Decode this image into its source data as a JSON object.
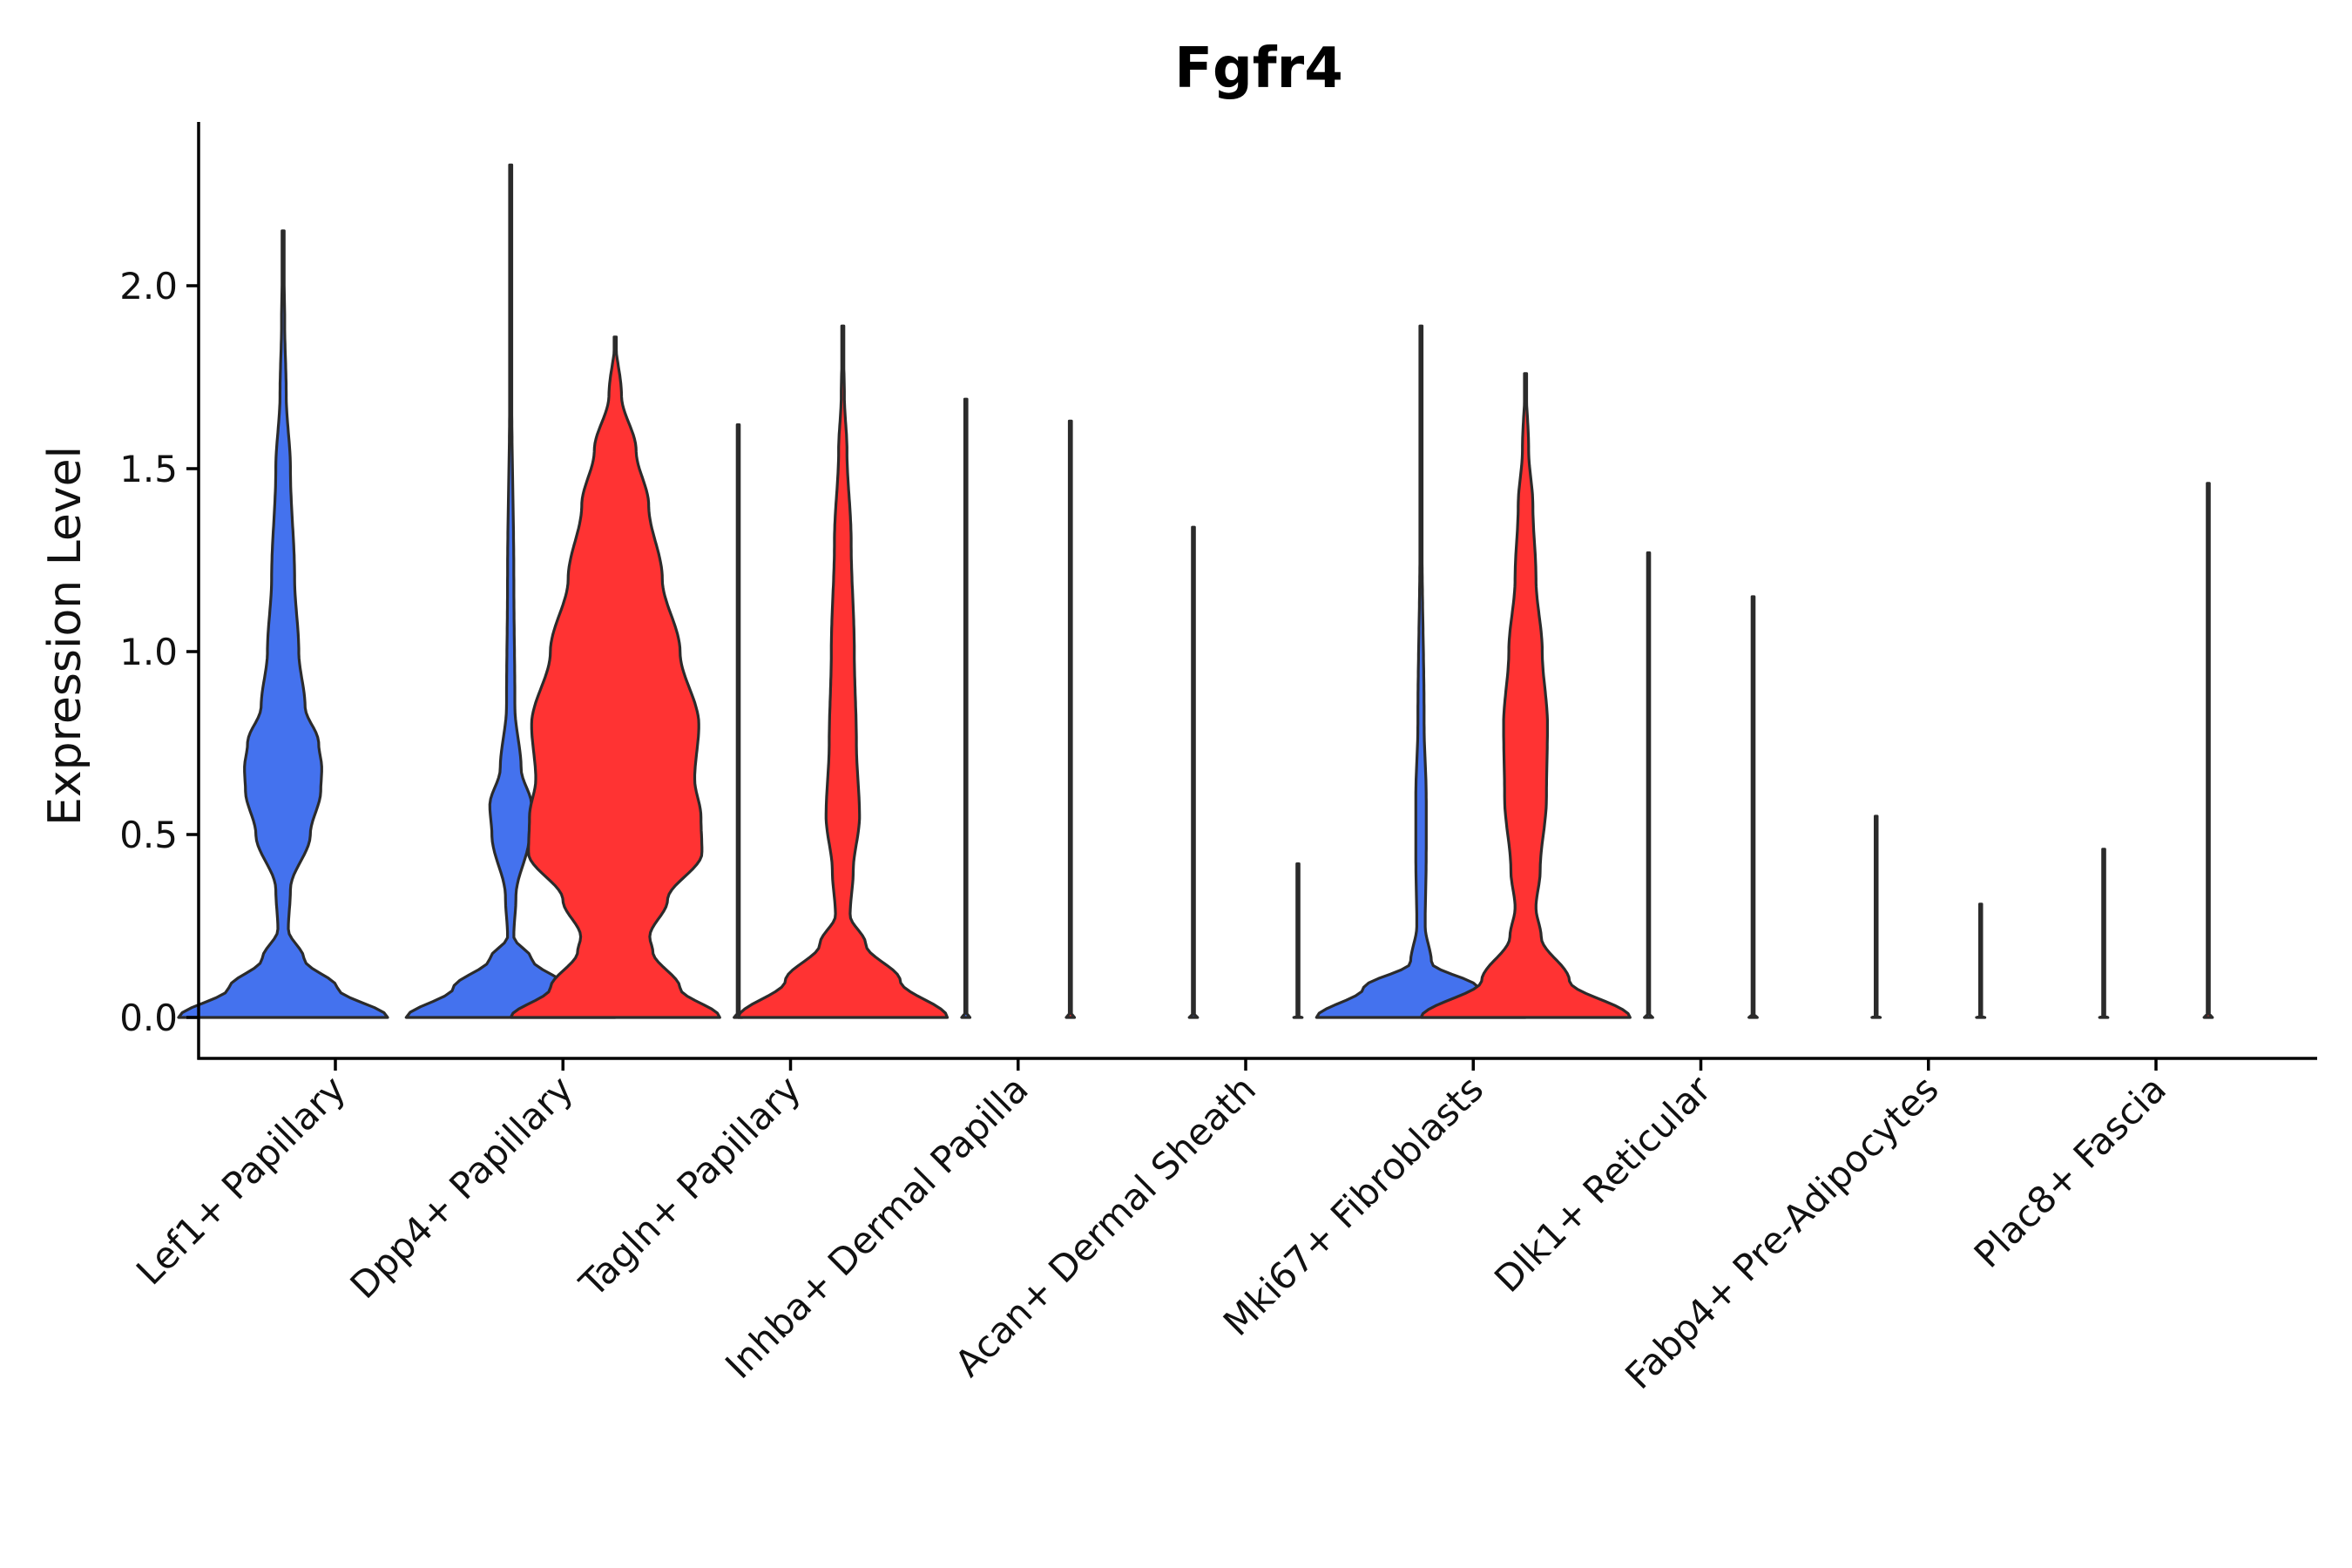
{
  "chart_data": {
    "type": "violin",
    "title": "Fgfr4",
    "xlabel": "",
    "ylabel": "Expression Level",
    "ylim": [
      -0.115,
      2.45
    ],
    "yticks": [
      0.0,
      0.5,
      1.0,
      1.5,
      2.0
    ],
    "ytick_labels": [
      "0.0",
      "0.5",
      "1.0",
      "1.5",
      "2.0"
    ],
    "categories": [
      "Lef1+ Papillary",
      "Dpp4+ Papillary",
      "Tagln+ Papillary",
      "Inhba+ Dermal Papilla",
      "Acan+ Dermal Sheath",
      "Mki67+ Fibroblasts",
      "Dlk1+ Reticular",
      "Fabp4+ Pre-Adipocytes",
      "Plac8+ Fascia"
    ],
    "series": [
      {
        "name": "group-1",
        "color": "#4472ee",
        "max_values": [
          2.15,
          2.33,
          1.62,
          1.69,
          1.34,
          1.89,
          1.27,
          0.55,
          0.46
        ],
        "density_profiles": [
          [
            [
              0,
              1.0
            ],
            [
              0.08,
              0.52
            ],
            [
              0.16,
              0.2
            ],
            [
              0.24,
              0.05
            ],
            [
              0.35,
              0.07
            ],
            [
              0.5,
              0.26
            ],
            [
              0.62,
              0.36
            ],
            [
              0.68,
              0.37
            ],
            [
              0.75,
              0.34
            ],
            [
              0.85,
              0.21
            ],
            [
              1.0,
              0.15
            ],
            [
              1.2,
              0.11
            ],
            [
              1.5,
              0.07
            ],
            [
              1.7,
              0.03
            ],
            [
              1.9,
              0.015
            ],
            [
              2.15,
              0
            ]
          ],
          [
            [
              0,
              1.0
            ],
            [
              0.08,
              0.55
            ],
            [
              0.16,
              0.2
            ],
            [
              0.22,
              0.03
            ],
            [
              0.33,
              0.05
            ],
            [
              0.5,
              0.18
            ],
            [
              0.58,
              0.2
            ],
            [
              0.68,
              0.1
            ],
            [
              0.85,
              0.04
            ],
            [
              1.2,
              0.03
            ],
            [
              1.7,
              0.01
            ],
            [
              2.33,
              0
            ]
          ],
          [
            [
              0,
              0.04
            ],
            [
              0.003,
              0.005
            ],
            [
              1.62,
              0
            ]
          ],
          [
            [
              0,
              0.04
            ],
            [
              0.003,
              0.005
            ],
            [
              1.69,
              0
            ]
          ],
          [
            [
              0,
              0.04
            ],
            [
              0.003,
              0.005
            ],
            [
              1.34,
              0
            ]
          ],
          [
            [
              0,
              1.0
            ],
            [
              0.08,
              0.55
            ],
            [
              0.15,
              0.1
            ],
            [
              0.25,
              0.04
            ],
            [
              0.45,
              0.05
            ],
            [
              0.6,
              0.05
            ],
            [
              0.8,
              0.03
            ],
            [
              1.3,
              0.01
            ],
            [
              1.89,
              0
            ]
          ],
          [
            [
              0,
              0.04
            ],
            [
              0.003,
              0.005
            ],
            [
              1.27,
              0
            ]
          ],
          [
            [
              0,
              0.04
            ],
            [
              0.003,
              0.005
            ],
            [
              0.55,
              0
            ]
          ],
          [
            [
              0,
              0.04
            ],
            [
              0.003,
              0.005
            ],
            [
              0.46,
              0
            ]
          ]
        ]
      },
      {
        "name": "group-2",
        "color": "#ff3333",
        "max_values": [
          null,
          1.86,
          1.89,
          1.63,
          0.42,
          1.76,
          1.15,
          0.31,
          1.46
        ],
        "density_profiles": [
          null,
          [
            [
              0,
              1.0
            ],
            [
              0.08,
              0.62
            ],
            [
              0.18,
              0.36
            ],
            [
              0.22,
              0.33
            ],
            [
              0.32,
              0.5
            ],
            [
              0.45,
              0.83
            ],
            [
              0.55,
              0.82
            ],
            [
              0.65,
              0.76
            ],
            [
              0.8,
              0.8
            ],
            [
              1.0,
              0.62
            ],
            [
              1.2,
              0.45
            ],
            [
              1.4,
              0.32
            ],
            [
              1.55,
              0.2
            ],
            [
              1.7,
              0.06
            ],
            [
              1.86,
              0
            ]
          ],
          [
            [
              0,
              1.0
            ],
            [
              0.1,
              0.55
            ],
            [
              0.2,
              0.22
            ],
            [
              0.28,
              0.07
            ],
            [
              0.4,
              0.1
            ],
            [
              0.55,
              0.16
            ],
            [
              0.75,
              0.13
            ],
            [
              1.0,
              0.11
            ],
            [
              1.3,
              0.08
            ],
            [
              1.55,
              0.04
            ],
            [
              1.7,
              0.015
            ],
            [
              1.89,
              0
            ]
          ],
          [
            [
              0,
              0.04
            ],
            [
              0.003,
              0.005
            ],
            [
              1.63,
              0
            ]
          ],
          [
            [
              0,
              0.04
            ],
            [
              0.003,
              0.005
            ],
            [
              0.42,
              0
            ]
          ],
          [
            [
              0,
              1.0
            ],
            [
              0.1,
              0.42
            ],
            [
              0.22,
              0.15
            ],
            [
              0.3,
              0.1
            ],
            [
              0.4,
              0.14
            ],
            [
              0.6,
              0.2
            ],
            [
              0.8,
              0.21
            ],
            [
              1.0,
              0.16
            ],
            [
              1.2,
              0.1
            ],
            [
              1.4,
              0.07
            ],
            [
              1.55,
              0.03
            ],
            [
              1.76,
              0
            ]
          ],
          [
            [
              0,
              0.04
            ],
            [
              0.003,
              0.005
            ],
            [
              1.15,
              0
            ]
          ],
          [
            [
              0,
              0.04
            ],
            [
              0.003,
              0.005
            ],
            [
              0.31,
              0
            ]
          ],
          [
            [
              0,
              0.04
            ],
            [
              0.003,
              0.005
            ],
            [
              1.46,
              0
            ]
          ]
        ]
      }
    ],
    "legend": "none",
    "grid": false
  }
}
